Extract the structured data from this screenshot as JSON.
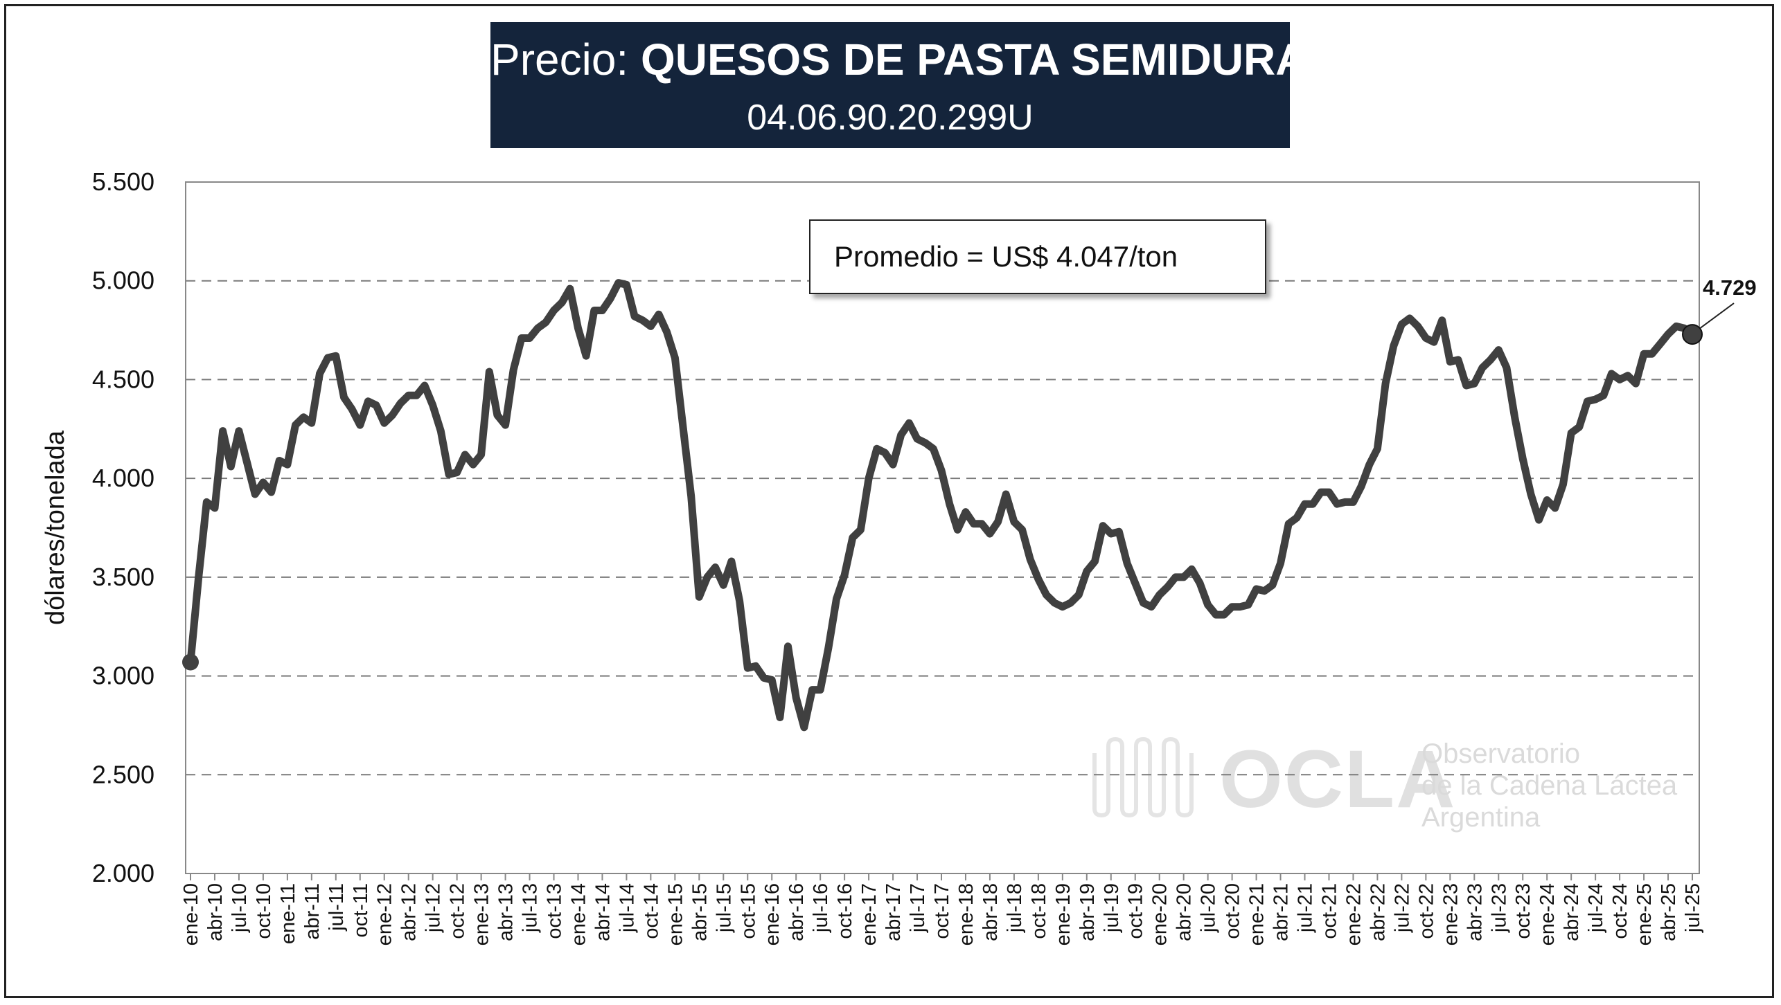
{
  "title": {
    "prefix": "Precio:",
    "main": "QUESOS DE PASTA SEMIDURA",
    "code": "04.06.90.20.299U"
  },
  "annotation": {
    "average_text": "Promedio = US$ 4.047/ton",
    "last_value_label": "4.729"
  },
  "watermark": {
    "logo": "OCLA",
    "line1": "Observatorio",
    "line2": "de la Cadena Láctea",
    "line3": "Argentina"
  },
  "colors": {
    "title_bg": "#14243b",
    "line": "#404040",
    "grid": "#7a7a7a"
  },
  "chart_data": {
    "type": "line",
    "title": "Precio: QUESOS DE PASTA SEMIDURA",
    "subtitle": "04.06.90.20.299U",
    "ylabel": "dólares/tonelada",
    "xlabel": "",
    "ylim": [
      2000,
      5500
    ],
    "yticks": [
      2000,
      2500,
      3000,
      3500,
      4000,
      4500,
      5000,
      5500
    ],
    "ytick_labels": [
      "2.000",
      "2.500",
      "3.000",
      "3.500",
      "4.000",
      "4.500",
      "5.000",
      "5.500"
    ],
    "grid": "horizontal-dashed",
    "legend": "none",
    "x_tick_labels": [
      "ene-10",
      "abr-10",
      "jul-10",
      "oct-10",
      "ene-11",
      "abr-11",
      "jul-11",
      "oct-11",
      "ene-12",
      "abr-12",
      "jul-12",
      "oct-12",
      "ene-13",
      "abr-13",
      "jul-13",
      "oct-13",
      "ene-14",
      "abr-14",
      "jul-14",
      "oct-14",
      "ene-15",
      "abr-15",
      "jul-15",
      "oct-15",
      "ene-16",
      "abr-16",
      "jul-16",
      "oct-16",
      "ene-17",
      "abr-17",
      "jul-17",
      "oct-17",
      "ene-18",
      "abr-18",
      "jul-18",
      "oct-18",
      "ene-19",
      "abr-19",
      "jul-19",
      "oct-19",
      "ene-20",
      "abr-20",
      "jul-20",
      "oct-20",
      "ene-21",
      "abr-21",
      "jul-21",
      "oct-21",
      "ene-22",
      "abr-22",
      "jul-22",
      "oct-22",
      "ene-23",
      "abr-23",
      "jul-23",
      "oct-23",
      "ene-24",
      "abr-24",
      "jul-24",
      "oct-24",
      "ene-25",
      "abr-25",
      "jul-25"
    ],
    "x_start": "2010-01",
    "x_end": "2025-07",
    "series": [
      {
        "values": [
          3070,
          3500,
          3880,
          3850,
          4240,
          4060,
          4240,
          4080,
          3920,
          3980,
          3930,
          4090,
          4070,
          4270,
          4310,
          4280,
          4530,
          4610,
          4620,
          4410,
          4350,
          4270,
          4390,
          4370,
          4280,
          4320,
          4380,
          4420,
          4420,
          4470,
          4370,
          4240,
          4020,
          4030,
          4120,
          4070,
          4120,
          4540,
          4320,
          4270,
          4550,
          4710,
          4710,
          4760,
          4790,
          4850,
          4890,
          4960,
          4760,
          4620,
          4850,
          4850,
          4910,
          4990,
          4980,
          4820,
          4800,
          4770,
          4830,
          4740,
          4610,
          4260,
          3910,
          3400,
          3500,
          3550,
          3460,
          3580,
          3380,
          3040,
          3050,
          2990,
          2980,
          2790,
          3150,
          2890,
          2740,
          2930,
          2930,
          3140,
          3390,
          3510,
          3700,
          3740,
          4000,
          4150,
          4130,
          4070,
          4220,
          4280,
          4200,
          4180,
          4150,
          4040,
          3870,
          3740,
          3830,
          3770,
          3770,
          3720,
          3780,
          3920,
          3780,
          3740,
          3590,
          3490,
          3410,
          3370,
          3350,
          3370,
          3410,
          3530,
          3580,
          3760,
          3720,
          3730,
          3570,
          3470,
          3370,
          3350,
          3410,
          3450,
          3500,
          3500,
          3540,
          3470,
          3360,
          3310,
          3310,
          3350,
          3350,
          3360,
          3440,
          3430,
          3460,
          3570,
          3770,
          3800,
          3870,
          3870,
          3930,
          3930,
          3870,
          3880,
          3880,
          3960,
          4070,
          4150,
          4480,
          4670,
          4780,
          4810,
          4770,
          4710,
          4690,
          4800,
          4590,
          4600,
          4470,
          4480,
          4560,
          4600,
          4650,
          4560,
          4310,
          4100,
          3920,
          3790,
          3890,
          3850,
          3970,
          4230,
          4260,
          4390,
          4400,
          4420,
          4530,
          4500,
          4520,
          4480,
          4630,
          4630,
          4680,
          4730,
          4770,
          4760,
          4729
        ]
      }
    ],
    "endpoints": {
      "first": {
        "x": "ene-10",
        "y": 3070
      },
      "last": {
        "x": "jul-25",
        "y": 4729
      }
    },
    "average": 4047
  }
}
